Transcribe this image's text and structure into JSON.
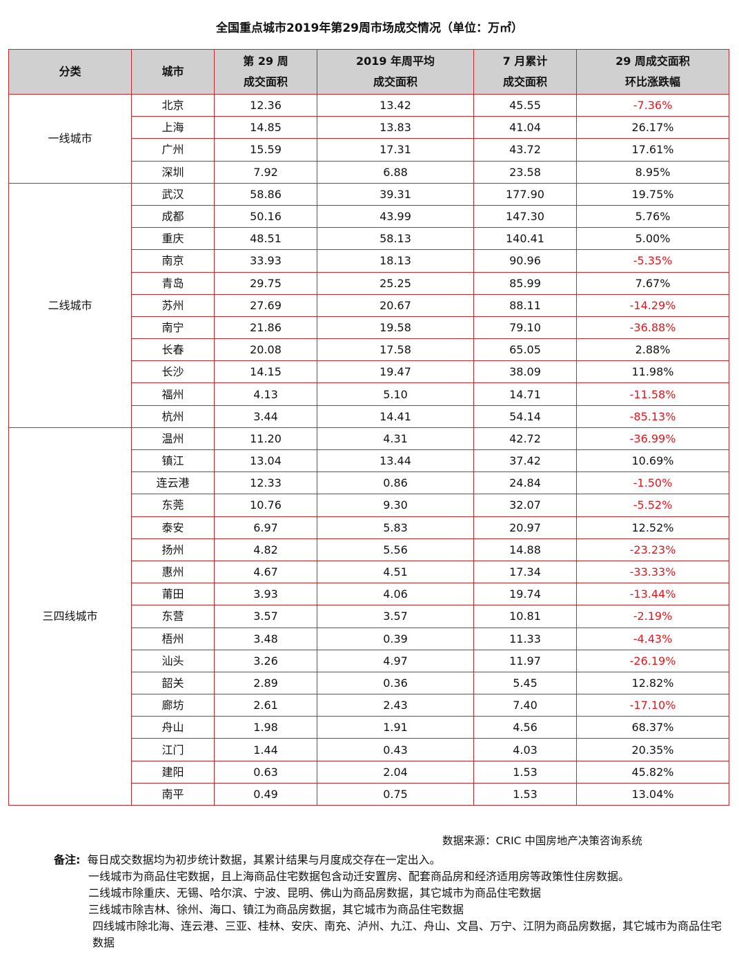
{
  "title": "全国重点城市2019年第29周市场成交情况（单位：万㎡）",
  "headers": {
    "category": "分类",
    "city": "城市",
    "week29_l1": "第 29 周",
    "week29_l2": "成交面积",
    "avg_l1": "2019 年周平均",
    "avg_l2": "成交面积",
    "july_l1": "7 月累计",
    "july_l2": "成交面积",
    "change_l1": "29 周成交面积",
    "change_l2": "环比涨跌幅"
  },
  "groups": [
    {
      "name": "一线城市",
      "rows": [
        {
          "city": "北京",
          "week": "12.36",
          "avg": "13.42",
          "july": "45.55",
          "change": "-7.36%"
        },
        {
          "city": "上海",
          "week": "14.85",
          "avg": "13.83",
          "july": "41.04",
          "change": "26.17%"
        },
        {
          "city": "广州",
          "week": "15.59",
          "avg": "17.31",
          "july": "43.72",
          "change": "17.61%"
        },
        {
          "city": "深圳",
          "week": "7.92",
          "avg": "6.88",
          "july": "23.58",
          "change": "8.95%"
        }
      ]
    },
    {
      "name": "二线城市",
      "rows": [
        {
          "city": "武汉",
          "week": "58.86",
          "avg": "39.31",
          "july": "177.90",
          "change": "19.75%"
        },
        {
          "city": "成都",
          "week": "50.16",
          "avg": "43.99",
          "july": "147.30",
          "change": "5.76%"
        },
        {
          "city": "重庆",
          "week": "48.51",
          "avg": "58.13",
          "july": "140.41",
          "change": "5.00%"
        },
        {
          "city": "南京",
          "week": "33.93",
          "avg": "18.13",
          "july": "90.96",
          "change": "-5.35%"
        },
        {
          "city": "青岛",
          "week": "29.75",
          "avg": "25.25",
          "july": "85.99",
          "change": "7.67%"
        },
        {
          "city": "苏州",
          "week": "27.69",
          "avg": "20.67",
          "july": "88.11",
          "change": "-14.29%"
        },
        {
          "city": "南宁",
          "week": "21.86",
          "avg": "19.58",
          "july": "79.10",
          "change": "-36.88%"
        },
        {
          "city": "长春",
          "week": "20.08",
          "avg": "17.58",
          "july": "65.05",
          "change": "2.88%"
        },
        {
          "city": "长沙",
          "week": "14.15",
          "avg": "19.47",
          "july": "38.09",
          "change": "11.98%"
        },
        {
          "city": "福州",
          "week": "4.13",
          "avg": "5.10",
          "july": "14.71",
          "change": "-11.58%"
        },
        {
          "city": "杭州",
          "week": "3.44",
          "avg": "14.41",
          "july": "54.14",
          "change": "-85.13%"
        }
      ]
    },
    {
      "name": "三四线城市",
      "rows": [
        {
          "city": "温州",
          "week": "11.20",
          "avg": "4.31",
          "july": "42.72",
          "change": "-36.99%"
        },
        {
          "city": "镇江",
          "week": "13.04",
          "avg": "13.44",
          "july": "37.42",
          "change": "10.69%"
        },
        {
          "city": "连云港",
          "week": "12.33",
          "avg": "0.86",
          "july": "24.84",
          "change": "-1.50%"
        },
        {
          "city": "东莞",
          "week": "10.76",
          "avg": "9.30",
          "july": "32.07",
          "change": "-5.52%"
        },
        {
          "city": "泰安",
          "week": "6.97",
          "avg": "5.83",
          "july": "20.97",
          "change": "12.52%"
        },
        {
          "city": "扬州",
          "week": "4.82",
          "avg": "5.56",
          "july": "14.88",
          "change": "-23.23%"
        },
        {
          "city": "惠州",
          "week": "4.67",
          "avg": "4.51",
          "july": "17.34",
          "change": "-33.33%"
        },
        {
          "city": "莆田",
          "week": "3.93",
          "avg": "4.06",
          "july": "19.74",
          "change": "-13.44%"
        },
        {
          "city": "东营",
          "week": "3.57",
          "avg": "3.57",
          "july": "10.81",
          "change": "-2.19%"
        },
        {
          "city": "梧州",
          "week": "3.48",
          "avg": "0.39",
          "july": "11.33",
          "change": "-4.43%"
        },
        {
          "city": "汕头",
          "week": "3.26",
          "avg": "4.97",
          "july": "11.97",
          "change": "-26.19%"
        },
        {
          "city": "韶关",
          "week": "2.89",
          "avg": "0.36",
          "july": "5.45",
          "change": "12.82%"
        },
        {
          "city": "廊坊",
          "week": "2.61",
          "avg": "2.43",
          "july": "7.40",
          "change": "-17.10%"
        },
        {
          "city": "舟山",
          "week": "1.98",
          "avg": "1.91",
          "july": "4.56",
          "change": "68.37%"
        },
        {
          "city": "江门",
          "week": "1.44",
          "avg": "0.43",
          "july": "4.03",
          "change": "20.35%"
        },
        {
          "city": "建阳",
          "week": "0.63",
          "avg": "2.04",
          "july": "1.53",
          "change": "45.82%"
        },
        {
          "city": "南平",
          "week": "0.49",
          "avg": "0.75",
          "july": "1.53",
          "change": "13.04%"
        }
      ]
    }
  ],
  "source": "数据来源：CRIC 中国房地产决策咨询系统",
  "notes": {
    "label": "备注:",
    "lines": [
      "每日成交数据均为初步统计数据，其累计结果与月度成交存在一定出入。",
      "一线城市为商品住宅数据，且上海商品住宅数据包含动迁安置房、配套商品房和经济适用房等政策性住房数据。",
      "二线城市除重庆、无锡、哈尔滨、宁波、昆明、佛山为商品房数据，其它城市为商品住宅数据",
      "三线城市除吉林、徐州、海口、镇江为商品房数据，其它城市为商品住宅数据",
      "四线城市除北海、连云港、三亚、桂林、安庆、南充、泸州、九江、舟山、文昌、万宁、江阴为商品房数据，其它城市为商品住宅数据"
    ]
  },
  "colors": {
    "border": "#c9252c",
    "header_bg": "#d0d0d0",
    "negative": "#e8141b"
  }
}
